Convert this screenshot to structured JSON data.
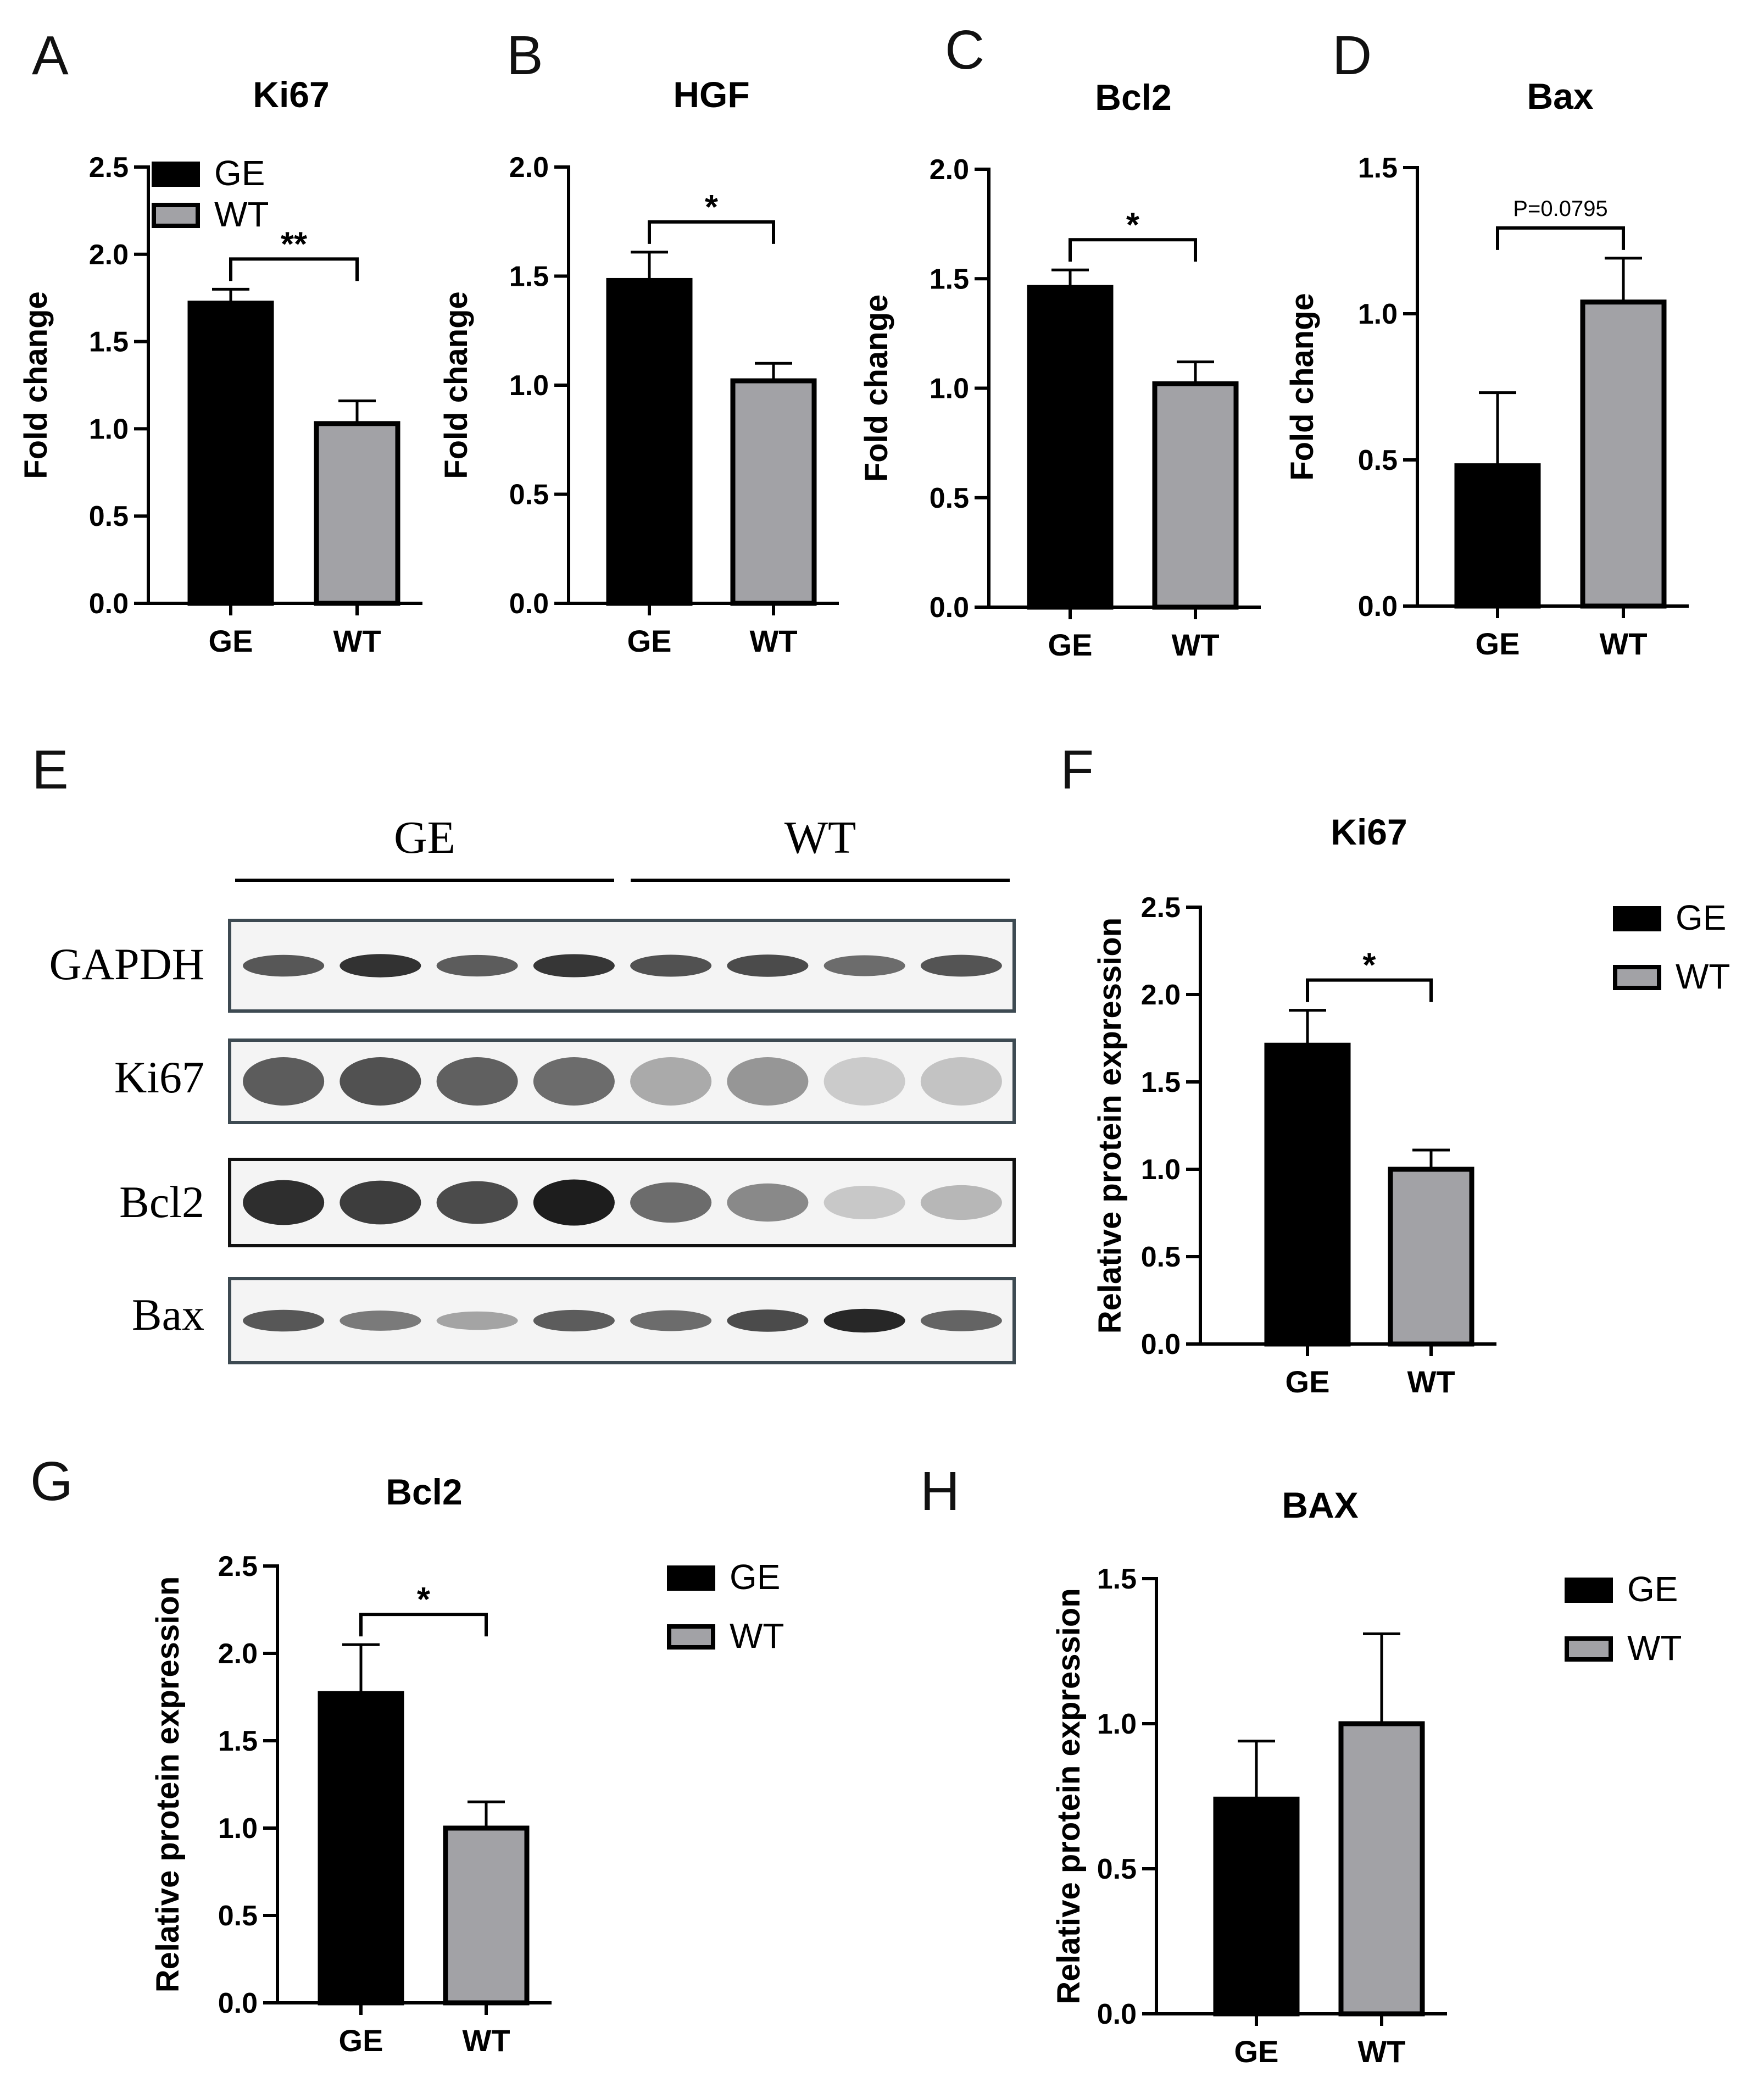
{
  "colors": {
    "ge": "#000000",
    "wt": "#a2a2a6",
    "axis": "#000000"
  },
  "legend_labels": [
    "GE",
    "WT"
  ],
  "blot": {
    "panel_letter": "E",
    "groups": [
      "GE",
      "WT"
    ],
    "rows": [
      {
        "label": "GAPDH",
        "intensity": [
          0.72,
          0.9,
          0.7,
          0.88,
          0.75,
          0.78,
          0.62,
          0.74
        ]
      },
      {
        "label": "Ki67",
        "intensity": [
          0.7,
          0.75,
          0.68,
          0.62,
          0.32,
          0.42,
          0.16,
          0.2
        ]
      },
      {
        "label": "Bcl2",
        "intensity": [
          0.92,
          0.85,
          0.78,
          1.0,
          0.62,
          0.48,
          0.18,
          0.26
        ]
      },
      {
        "label": "Bax",
        "intensity": [
          0.72,
          0.55,
          0.35,
          0.7,
          0.62,
          0.78,
          0.95,
          0.66
        ]
      }
    ]
  },
  "chart_data": [
    {
      "panel": "A",
      "type": "bar",
      "title": "Ki67",
      "ylabel": "Fold change",
      "categories": [
        "GE",
        "WT"
      ],
      "values": [
        1.72,
        1.03
      ],
      "errors": [
        0.08,
        0.13
      ],
      "ylim": [
        0,
        2.5
      ],
      "yticks": [
        "0.0",
        "0.5",
        "1.0",
        "1.5",
        "2.0",
        "2.5"
      ],
      "significance": "**",
      "legend": [
        "GE",
        "WT"
      ],
      "legend_position": "top-left inside"
    },
    {
      "panel": "B",
      "type": "bar",
      "title": "HGF",
      "ylabel": "Fold change",
      "categories": [
        "GE",
        "WT"
      ],
      "values": [
        1.48,
        1.02
      ],
      "errors": [
        0.13,
        0.08
      ],
      "ylim": [
        0,
        2.0
      ],
      "yticks": [
        "0.0",
        "0.5",
        "1.0",
        "1.5",
        "2.0"
      ],
      "significance": "*"
    },
    {
      "panel": "C",
      "type": "bar",
      "title": "Bcl2",
      "ylabel": "Fold change",
      "categories": [
        "GE",
        "WT"
      ],
      "values": [
        1.46,
        1.02
      ],
      "errors": [
        0.08,
        0.1
      ],
      "ylim": [
        0,
        2.0
      ],
      "yticks": [
        "0.0",
        "0.5",
        "1.0",
        "1.5",
        "2.0"
      ],
      "significance": "*"
    },
    {
      "panel": "D",
      "type": "bar",
      "title": "Bax",
      "ylabel": "Fold change",
      "categories": [
        "GE",
        "WT"
      ],
      "values": [
        0.48,
        1.04
      ],
      "errors": [
        0.25,
        0.15
      ],
      "ylim": [
        0,
        1.5
      ],
      "yticks": [
        "0.0",
        "0.5",
        "1.0",
        "1.5"
      ],
      "significance": "P=0.0795"
    },
    {
      "panel": "F",
      "type": "bar",
      "title": "Ki67",
      "ylabel": "Relative protein expression",
      "categories": [
        "GE",
        "WT"
      ],
      "values": [
        1.71,
        1.0
      ],
      "errors": [
        0.2,
        0.11
      ],
      "ylim": [
        0,
        2.5
      ],
      "yticks": [
        "0.0",
        "0.5",
        "1.0",
        "1.5",
        "2.0",
        "2.5"
      ],
      "significance": "*",
      "legend": [
        "GE",
        "WT"
      ],
      "legend_position": "right"
    },
    {
      "panel": "G",
      "type": "bar",
      "title": "Bcl2",
      "ylabel": "Relative protein expression",
      "categories": [
        "GE",
        "WT"
      ],
      "values": [
        1.77,
        1.0
      ],
      "errors": [
        0.28,
        0.15
      ],
      "ylim": [
        0,
        2.5
      ],
      "yticks": [
        "0.0",
        "0.5",
        "1.0",
        "1.5",
        "2.0",
        "2.5"
      ],
      "significance": "*",
      "legend": [
        "GE",
        "WT"
      ],
      "legend_position": "right"
    },
    {
      "panel": "H",
      "type": "bar",
      "title": "BAX",
      "ylabel": "Relative protein expression",
      "categories": [
        "GE",
        "WT"
      ],
      "values": [
        0.74,
        1.0
      ],
      "errors": [
        0.2,
        0.31
      ],
      "ylim": [
        0,
        1.5
      ],
      "yticks": [
        "0.0",
        "0.5",
        "1.0",
        "1.5"
      ],
      "significance": "",
      "legend": [
        "GE",
        "WT"
      ],
      "legend_position": "right"
    }
  ]
}
